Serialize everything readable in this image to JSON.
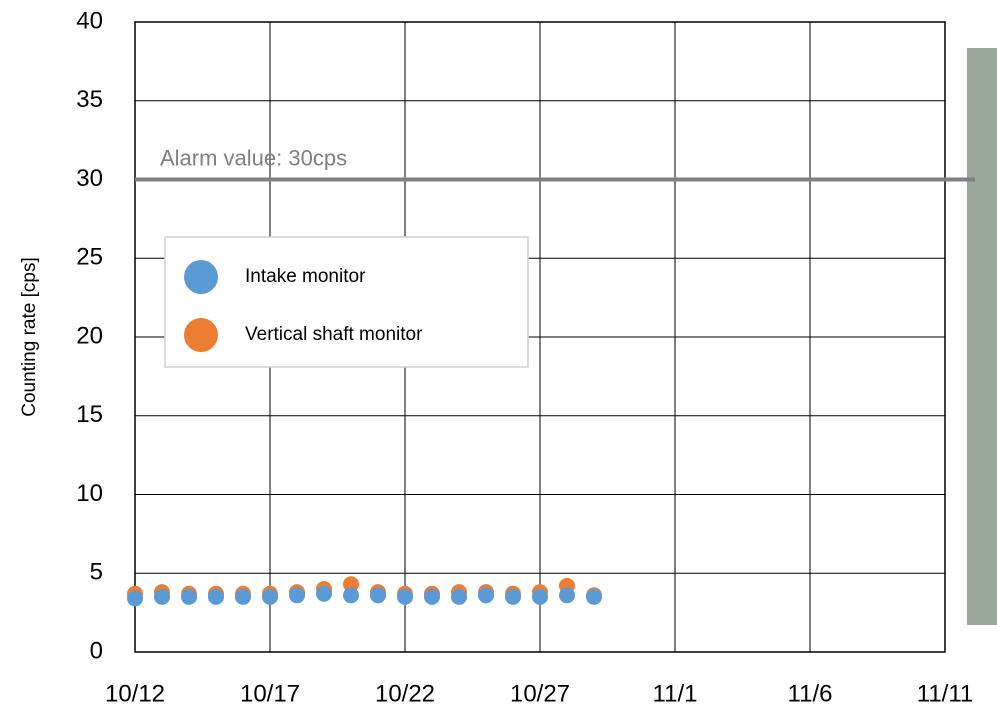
{
  "chart_data": {
    "type": "scatter",
    "y_label": "Counting rate [cps]",
    "x": [
      "10/12",
      "10/13",
      "10/14",
      "10/15",
      "10/16",
      "10/17",
      "10/18",
      "10/19",
      "10/20",
      "10/21",
      "10/22",
      "10/23",
      "10/24",
      "10/25",
      "10/26",
      "10/27",
      "10/28",
      "10/29"
    ],
    "series": [
      {
        "name": "Intake monitor",
        "color": "#5b9bd5",
        "values": [
          3.4,
          3.5,
          3.5,
          3.5,
          3.5,
          3.5,
          3.6,
          3.7,
          3.6,
          3.6,
          3.5,
          3.5,
          3.5,
          3.6,
          3.5,
          3.5,
          3.6,
          3.5
        ]
      },
      {
        "name": "Vertical shaft monitor",
        "color": "#ed7d31",
        "values": [
          3.7,
          3.8,
          3.7,
          3.7,
          3.7,
          3.7,
          3.8,
          4.0,
          4.3,
          3.8,
          3.7,
          3.7,
          3.8,
          3.8,
          3.7,
          3.8,
          4.2,
          3.6
        ]
      }
    ],
    "alarm": {
      "value": 30,
      "label": "Alarm value: 30cps",
      "color": "#808080"
    },
    "xlim": [
      "10/12",
      "11/11"
    ],
    "xticks": [
      "10/12",
      "10/17",
      "10/22",
      "10/27",
      "11/1",
      "11/6",
      "11/11"
    ],
    "ylim": [
      0,
      40
    ],
    "yticks": [
      0,
      5,
      10,
      15,
      20,
      25,
      30,
      35,
      40
    ],
    "grid": true
  }
}
